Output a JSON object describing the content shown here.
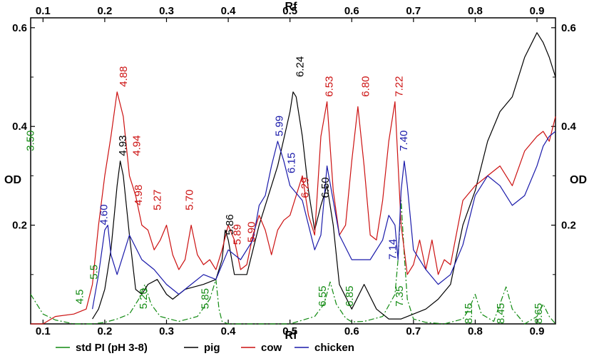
{
  "chart_data": {
    "type": "line",
    "x_title": "Rf",
    "y_title": "OD",
    "xlim": [
      0.08,
      0.93
    ],
    "ylim": [
      0.0,
      0.62
    ],
    "x_ticks": [
      {
        "v": 0.1,
        "label": "0.1"
      },
      {
        "v": 0.2,
        "label": "0.2"
      },
      {
        "v": 0.3,
        "label": "0.3"
      },
      {
        "v": 0.4,
        "label": "0.4"
      },
      {
        "v": 0.5,
        "label": "0.5"
      },
      {
        "v": 0.6,
        "label": "0.6"
      },
      {
        "v": 0.7,
        "label": "0.7"
      },
      {
        "v": 0.8,
        "label": "0.8"
      },
      {
        "v": 0.9,
        "label": "0.9"
      }
    ],
    "y_ticks": [
      {
        "v": 0.2,
        "label": "0.2"
      },
      {
        "v": 0.4,
        "label": "0.4"
      },
      {
        "v": 0.6,
        "label": "0.6"
      }
    ],
    "y_minor_ticks": [
      0.1,
      0.3,
      0.5
    ],
    "series": [
      {
        "name": "std PI (pH 3-8)",
        "color": "#118a11",
        "dash": "8,3,2,3",
        "x": [
          0.08,
          0.1,
          0.12,
          0.15,
          0.18,
          0.2,
          0.22,
          0.24,
          0.255,
          0.265,
          0.275,
          0.29,
          0.32,
          0.35,
          0.37,
          0.38,
          0.385,
          0.39,
          0.4,
          0.45,
          0.5,
          0.54,
          0.555,
          0.565,
          0.575,
          0.59,
          0.6,
          0.62,
          0.65,
          0.67,
          0.675,
          0.68,
          0.685,
          0.69,
          0.7,
          0.72,
          0.75,
          0.78,
          0.79,
          0.8,
          0.81,
          0.83,
          0.84,
          0.85,
          0.86,
          0.88,
          0.9,
          0.91,
          0.92,
          0.93
        ],
        "y": [
          0.06,
          0.02,
          0.008,
          0.0,
          0.0,
          0.003,
          0.01,
          0.02,
          0.05,
          0.08,
          0.04,
          0.015,
          0.005,
          0.015,
          0.05,
          0.09,
          0.03,
          0.005,
          0.0,
          0.0,
          0.0,
          0.015,
          0.04,
          0.085,
          0.04,
          0.012,
          0.004,
          0.005,
          0.015,
          0.06,
          0.13,
          0.25,
          0.14,
          0.05,
          0.01,
          0.003,
          0.0,
          0.01,
          0.03,
          0.06,
          0.02,
          0.005,
          0.04,
          0.075,
          0.03,
          0.0,
          0.015,
          0.04,
          0.015,
          0.0
        ]
      },
      {
        "name": "pig",
        "color": "#000000",
        "dash": "",
        "x": [
          0.18,
          0.19,
          0.2,
          0.21,
          0.22,
          0.225,
          0.23,
          0.24,
          0.25,
          0.26,
          0.27,
          0.285,
          0.3,
          0.31,
          0.33,
          0.36,
          0.38,
          0.39,
          0.395,
          0.4,
          0.41,
          0.43,
          0.45,
          0.48,
          0.5,
          0.505,
          0.51,
          0.52,
          0.53,
          0.54,
          0.55,
          0.56,
          0.57,
          0.58,
          0.6,
          0.62,
          0.64,
          0.66,
          0.68,
          0.7,
          0.72,
          0.74,
          0.76,
          0.78,
          0.8,
          0.82,
          0.84,
          0.86,
          0.88,
          0.9,
          0.91,
          0.92,
          0.93
        ],
        "y": [
          0.01,
          0.03,
          0.07,
          0.15,
          0.28,
          0.33,
          0.3,
          0.18,
          0.07,
          0.06,
          0.08,
          0.09,
          0.06,
          0.05,
          0.07,
          0.08,
          0.09,
          0.13,
          0.19,
          0.17,
          0.1,
          0.1,
          0.2,
          0.32,
          0.43,
          0.47,
          0.46,
          0.38,
          0.27,
          0.19,
          0.24,
          0.28,
          0.2,
          0.08,
          0.03,
          0.08,
          0.03,
          0.01,
          0.01,
          0.02,
          0.03,
          0.05,
          0.08,
          0.2,
          0.27,
          0.37,
          0.43,
          0.46,
          0.54,
          0.59,
          0.57,
          0.54,
          0.5
        ]
      },
      {
        "name": "cow",
        "color": "#cc1111",
        "dash": "",
        "x": [
          0.08,
          0.1,
          0.12,
          0.15,
          0.17,
          0.18,
          0.19,
          0.2,
          0.21,
          0.22,
          0.23,
          0.24,
          0.25,
          0.26,
          0.27,
          0.28,
          0.29,
          0.3,
          0.31,
          0.32,
          0.33,
          0.34,
          0.35,
          0.36,
          0.37,
          0.38,
          0.39,
          0.4,
          0.41,
          0.42,
          0.43,
          0.44,
          0.45,
          0.46,
          0.47,
          0.48,
          0.49,
          0.5,
          0.52,
          0.53,
          0.54,
          0.55,
          0.56,
          0.57,
          0.58,
          0.59,
          0.6,
          0.61,
          0.62,
          0.63,
          0.64,
          0.65,
          0.66,
          0.67,
          0.68,
          0.69,
          0.7,
          0.71,
          0.72,
          0.73,
          0.74,
          0.75,
          0.76,
          0.78,
          0.8,
          0.82,
          0.84,
          0.86,
          0.88,
          0.9,
          0.91,
          0.92,
          0.93
        ],
        "y": [
          0.0,
          0.0,
          0.015,
          0.02,
          0.03,
          0.08,
          0.2,
          0.3,
          0.38,
          0.47,
          0.42,
          0.3,
          0.26,
          0.2,
          0.19,
          0.15,
          0.17,
          0.2,
          0.14,
          0.11,
          0.13,
          0.2,
          0.14,
          0.12,
          0.13,
          0.11,
          0.15,
          0.2,
          0.17,
          0.11,
          0.12,
          0.18,
          0.22,
          0.19,
          0.14,
          0.19,
          0.21,
          0.22,
          0.3,
          0.22,
          0.18,
          0.38,
          0.45,
          0.27,
          0.18,
          0.2,
          0.33,
          0.44,
          0.32,
          0.18,
          0.17,
          0.25,
          0.37,
          0.45,
          0.2,
          0.1,
          0.12,
          0.17,
          0.11,
          0.17,
          0.1,
          0.13,
          0.12,
          0.25,
          0.28,
          0.3,
          0.32,
          0.28,
          0.35,
          0.38,
          0.39,
          0.37,
          0.42
        ]
      },
      {
        "name": "chicken",
        "color": "#1a1aaa",
        "dash": "",
        "x": [
          0.18,
          0.19,
          0.2,
          0.205,
          0.21,
          0.22,
          0.23,
          0.24,
          0.26,
          0.28,
          0.3,
          0.32,
          0.34,
          0.36,
          0.38,
          0.4,
          0.42,
          0.44,
          0.45,
          0.46,
          0.47,
          0.48,
          0.49,
          0.5,
          0.52,
          0.54,
          0.55,
          0.56,
          0.58,
          0.6,
          0.63,
          0.65,
          0.66,
          0.67,
          0.675,
          0.68,
          0.685,
          0.69,
          0.7,
          0.72,
          0.74,
          0.76,
          0.78,
          0.8,
          0.82,
          0.84,
          0.86,
          0.88,
          0.9,
          0.91,
          0.92,
          0.93
        ],
        "y": [
          0.03,
          0.1,
          0.19,
          0.2,
          0.14,
          0.1,
          0.14,
          0.18,
          0.13,
          0.11,
          0.08,
          0.06,
          0.08,
          0.1,
          0.09,
          0.15,
          0.13,
          0.17,
          0.24,
          0.26,
          0.32,
          0.37,
          0.33,
          0.28,
          0.25,
          0.15,
          0.18,
          0.32,
          0.18,
          0.13,
          0.13,
          0.17,
          0.22,
          0.2,
          0.13,
          0.27,
          0.33,
          0.28,
          0.15,
          0.11,
          0.08,
          0.1,
          0.16,
          0.26,
          0.3,
          0.28,
          0.24,
          0.26,
          0.32,
          0.36,
          0.38,
          0.39
        ]
      }
    ],
    "annotations": [
      {
        "text": "3.50",
        "x": 0.085,
        "y": 0.35,
        "color": "#118a11"
      },
      {
        "text": "4.5",
        "x": 0.165,
        "y": 0.04,
        "color": "#118a11"
      },
      {
        "text": "5.5",
        "x": 0.188,
        "y": 0.09,
        "color": "#118a11"
      },
      {
        "text": "5.20",
        "x": 0.268,
        "y": 0.03,
        "color": "#118a11"
      },
      {
        "text": "5.85",
        "x": 0.368,
        "y": 0.03,
        "color": "#118a11"
      },
      {
        "text": "6.55",
        "x": 0.558,
        "y": 0.035,
        "color": "#118a11"
      },
      {
        "text": "6.85",
        "x": 0.602,
        "y": 0.035,
        "color": "#118a11"
      },
      {
        "text": "7.35",
        "x": 0.683,
        "y": 0.035,
        "color": "#118a11"
      },
      {
        "text": "8.15",
        "x": 0.795,
        "y": 0.0,
        "color": "#118a11"
      },
      {
        "text": "8.45",
        "x": 0.847,
        "y": 0.0,
        "color": "#118a11"
      },
      {
        "text": "8.65",
        "x": 0.908,
        "y": 0.0,
        "color": "#118a11"
      },
      {
        "text": "4.60",
        "x": 0.204,
        "y": 0.2,
        "color": "#1a1aaa"
      },
      {
        "text": "4.88",
        "x": 0.236,
        "y": 0.48,
        "color": "#cc1111"
      },
      {
        "text": "4.93",
        "x": 0.235,
        "y": 0.34,
        "color": "#000000"
      },
      {
        "text": "4.94",
        "x": 0.257,
        "y": 0.34,
        "color": "#cc1111"
      },
      {
        "text": "4.98",
        "x": 0.26,
        "y": 0.24,
        "color": "#cc1111"
      },
      {
        "text": "5.27",
        "x": 0.291,
        "y": 0.23,
        "color": "#cc1111"
      },
      {
        "text": "5.70",
        "x": 0.343,
        "y": 0.23,
        "color": "#cc1111"
      },
      {
        "text": "5.86",
        "x": 0.408,
        "y": 0.18,
        "color": "#000000"
      },
      {
        "text": "5.89",
        "x": 0.42,
        "y": 0.16,
        "color": "#cc1111"
      },
      {
        "text": "5.90",
        "x": 0.443,
        "y": 0.165,
        "color": "#cc1111"
      },
      {
        "text": "5.99",
        "x": 0.488,
        "y": 0.38,
        "color": "#1a1aaa"
      },
      {
        "text": "6.15",
        "x": 0.508,
        "y": 0.305,
        "color": "#1a1aaa"
      },
      {
        "text": "6.29",
        "x": 0.53,
        "y": 0.255,
        "color": "#cc1111"
      },
      {
        "text": "6.24",
        "x": 0.522,
        "y": 0.5,
        "color": "#000000"
      },
      {
        "text": "6.50",
        "x": 0.563,
        "y": 0.255,
        "color": "#000000"
      },
      {
        "text": "6.53",
        "x": 0.569,
        "y": 0.46,
        "color": "#cc1111"
      },
      {
        "text": "6.80",
        "x": 0.628,
        "y": 0.46,
        "color": "#cc1111"
      },
      {
        "text": "7.14",
        "x": 0.672,
        "y": 0.13,
        "color": "#1a1aaa"
      },
      {
        "text": "7.22",
        "x": 0.682,
        "y": 0.46,
        "color": "#cc1111"
      },
      {
        "text": "7.40",
        "x": 0.69,
        "y": 0.35,
        "color": "#1a1aaa"
      }
    ],
    "legend": [
      {
        "label": "std PI (pH 3-8)",
        "color": "#118a11"
      },
      {
        "label": "pig",
        "color": "#000000"
      },
      {
        "label": "cow",
        "color": "#cc1111"
      },
      {
        "label": "chicken",
        "color": "#1a1aaa"
      }
    ]
  }
}
